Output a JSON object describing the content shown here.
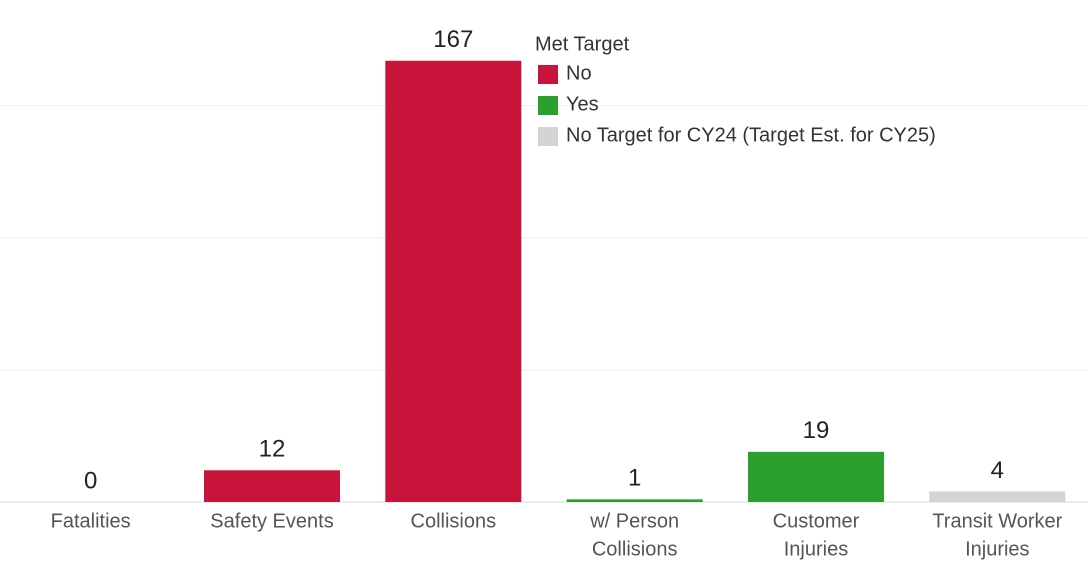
{
  "chart_data": {
    "type": "bar",
    "categories": [
      [
        "Fatalities"
      ],
      [
        "Safety Events"
      ],
      [
        "Collisions"
      ],
      [
        "w/ Person",
        "Collisions"
      ],
      [
        "Customer",
        "Injuries"
      ],
      [
        "Transit Worker",
        "Injuries"
      ]
    ],
    "values": [
      0,
      12,
      167,
      1,
      19,
      4
    ],
    "colors": [
      "#2ca02c",
      "#c8133b",
      "#c8133b",
      "#2ca02c",
      "#2ca02c",
      "#d4d4d4"
    ],
    "ylim": [
      0,
      190
    ],
    "yticks": [
      0,
      50,
      100,
      150
    ],
    "grid": true,
    "legend": {
      "title": "Met Target",
      "position": "top-center",
      "items": [
        {
          "name": "No",
          "color": "#c8133b"
        },
        {
          "name": "Yes",
          "color": "#2ca02c"
        },
        {
          "name": "No Target for CY24 (Target Est. for CY25)",
          "color": "#d4d4d4"
        }
      ]
    }
  }
}
